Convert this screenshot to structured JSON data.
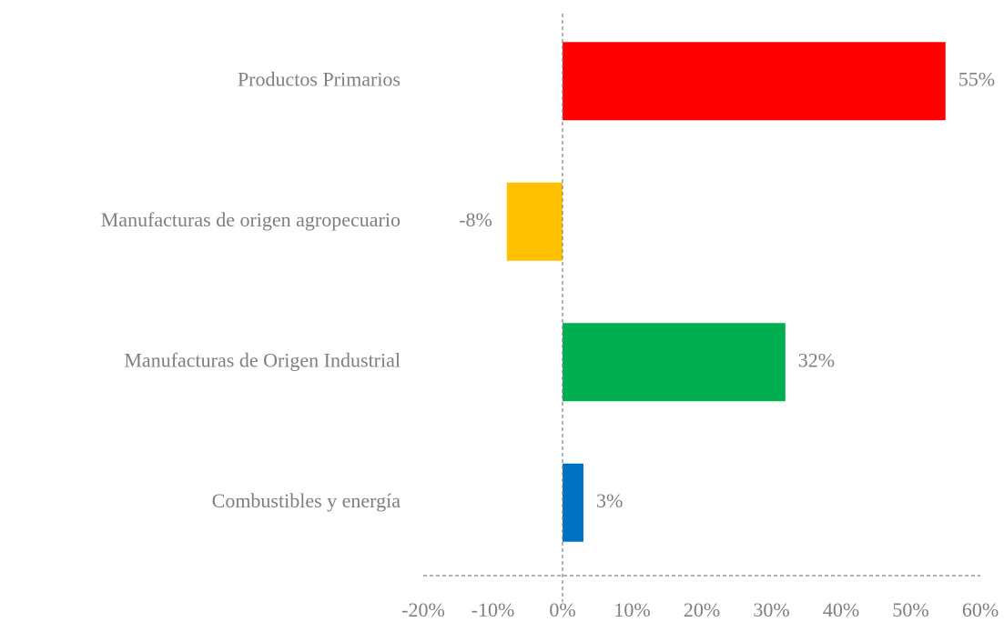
{
  "chart_data": {
    "type": "barh",
    "categories": [
      "Productos Primarios",
      "Manufacturas de origen agropecuario",
      "Manufacturas de Origen Industrial",
      "Combustibles y energía"
    ],
    "values": [
      55,
      -8,
      32,
      3
    ],
    "value_labels": [
      "55%",
      "-8%",
      "32%",
      "3%"
    ],
    "colors": [
      "#ff0000",
      "#ffc000",
      "#00b050",
      "#0070c0"
    ],
    "xlim": [
      -20,
      60
    ],
    "xticks": [
      {
        "value": -20,
        "label": "-20%"
      },
      {
        "value": -10,
        "label": "-10%"
      },
      {
        "value": 0,
        "label": "0%"
      },
      {
        "value": 10,
        "label": "10%"
      },
      {
        "value": 20,
        "label": "20%"
      },
      {
        "value": 30,
        "label": "30%"
      },
      {
        "value": 40,
        "label": "40%"
      },
      {
        "value": 50,
        "label": "50%"
      },
      {
        "value": 60,
        "label": "60%"
      }
    ],
    "grid": false
  }
}
